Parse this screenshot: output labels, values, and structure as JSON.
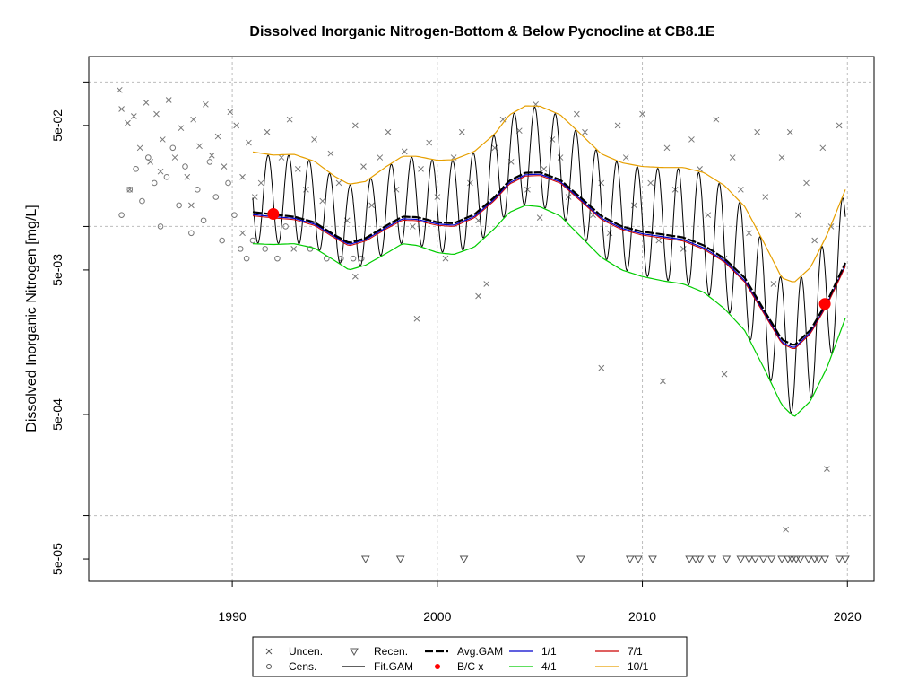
{
  "chart_data": {
    "type": "line",
    "title": "Dissolved Inorganic Nitrogen-Bottom & Below Pycnocline at CB8.1E",
    "xlabel": "",
    "ylabel": "Dissolved Inorganic Nitrogen [mg/L]",
    "xlim": [
      1983,
      2021.3
    ],
    "ylim": [
      3.5e-05,
      0.15
    ],
    "y_scale": "log",
    "grid": true,
    "x_ticks": [
      1990,
      2000,
      2010,
      2020
    ],
    "x_tick_labels": [
      "1990",
      "2000",
      "2010",
      "2020"
    ],
    "y_ticks": [
      5e-05,
      0.0005,
      0.005,
      0.05
    ],
    "y_tick_labels": [
      "5e-05",
      "5e-04",
      "5e-03",
      "5e-02"
    ],
    "y_grid_minor": [
      0.0001,
      0.001,
      0.01,
      0.1
    ],
    "bc_points": [
      {
        "x": 1992.0,
        "y": 0.0122
      },
      {
        "x": 2018.9,
        "y": 0.00291
      }
    ],
    "smooth_series": {
      "x": [
        1991.0,
        1992.0,
        1993.0,
        1994.0,
        1995.0,
        1995.7,
        1996.5,
        1997.5,
        1998.3,
        1999.0,
        2000.0,
        2000.8,
        2001.8,
        2002.8,
        2003.5,
        2004.3,
        2005.0,
        2006.0,
        2007.0,
        2008.0,
        2009.0,
        2010.0,
        2011.0,
        2012.0,
        2013.0,
        2014.0,
        2015.0,
        2016.0,
        2016.8,
        2017.4,
        2018.2,
        2019.0,
        2019.9
      ],
      "avg_gam": [
        0.0126,
        0.0121,
        0.0117,
        0.0107,
        0.0087,
        0.0077,
        0.0083,
        0.0101,
        0.0117,
        0.0116,
        0.0107,
        0.0105,
        0.0121,
        0.016,
        0.0207,
        0.0235,
        0.0237,
        0.021,
        0.0158,
        0.0118,
        0.01,
        0.0092,
        0.0088,
        0.0084,
        0.0074,
        0.006,
        0.0044,
        0.00255,
        0.00165,
        0.0015,
        0.00192,
        0.003,
        0.0056
      ],
      "jul": [
        0.0121,
        0.0117,
        0.0114,
        0.0104,
        0.0085,
        0.0075,
        0.0081,
        0.0098,
        0.0113,
        0.0112,
        0.0104,
        0.0102,
        0.0117,
        0.0155,
        0.02,
        0.0228,
        0.023,
        0.0204,
        0.0153,
        0.0114,
        0.0097,
        0.0089,
        0.0085,
        0.0081,
        0.0071,
        0.0058,
        0.0042,
        0.00245,
        0.00158,
        0.00144,
        0.00185,
        0.0029,
        0.0054
      ],
      "apr": [
        0.0076,
        0.0075,
        0.0076,
        0.0071,
        0.0058,
        0.005,
        0.0054,
        0.0065,
        0.0076,
        0.0074,
        0.0066,
        0.0064,
        0.0072,
        0.0097,
        0.0125,
        0.014,
        0.0137,
        0.0118,
        0.0085,
        0.0061,
        0.005,
        0.0045,
        0.0042,
        0.004,
        0.0035,
        0.0027,
        0.0019,
        0.001,
        0.00058,
        0.00048,
        0.00062,
        0.00105,
        0.00232
      ],
      "oct": [
        0.0328,
        0.0312,
        0.0316,
        0.0283,
        0.0222,
        0.0196,
        0.0205,
        0.0259,
        0.0306,
        0.0306,
        0.0287,
        0.029,
        0.033,
        0.0437,
        0.059,
        0.0683,
        0.068,
        0.0592,
        0.0435,
        0.0318,
        0.0276,
        0.026,
        0.0256,
        0.0256,
        0.0236,
        0.0192,
        0.0137,
        0.0074,
        0.0044,
        0.0041,
        0.0052,
        0.0087,
        0.018
      ]
    },
    "uncen_points": {
      "x": [
        1984.5,
        1984.6,
        1984.9,
        1985.2,
        1985.5,
        1985.8,
        1986.0,
        1986.3,
        1986.6,
        1986.9,
        1987.2,
        1987.5,
        1987.8,
        1988.1,
        1988.4,
        1988.7,
        1989.0,
        1989.3,
        1989.6,
        1989.9,
        1990.2,
        1990.5,
        1990.8,
        1991.1,
        1991.4,
        1991.7,
        1992.0,
        1992.4,
        1992.8,
        1993.2,
        1993.6,
        1994.0,
        1994.4,
        1994.8,
        1995.2,
        1995.6,
        1996.0,
        1996.4,
        1996.8,
        1997.2,
        1997.6,
        1998.0,
        1998.4,
        1998.8,
        1999.2,
        1999.6,
        2000.0,
        2000.4,
        2000.8,
        2001.2,
        2001.6,
        2002.0,
        2002.4,
        2002.8,
        2003.2,
        2003.6,
        2004.0,
        2004.4,
        2004.8,
        2005.2,
        2005.6,
        2006.0,
        2006.4,
        2006.8,
        2007.2,
        2007.6,
        2008.0,
        2008.4,
        2008.8,
        2009.2,
        2009.6,
        2010.0,
        2010.4,
        2010.8,
        2011.2,
        2011.6,
        2012.0,
        2012.4,
        2012.8,
        2013.2,
        2013.6,
        2014.0,
        2014.4,
        2014.8,
        2015.2,
        2015.6,
        2016.0,
        2016.4,
        2016.8,
        2017.2,
        2017.6,
        2018.0,
        2018.4,
        2018.8,
        2019.2,
        2019.6,
        1985.0,
        1986.5,
        1988.0,
        1990.5,
        1993.0,
        1996.0,
        1999.0,
        2002.0,
        2005.0,
        2008.0,
        2011.0,
        2014.0,
        2017.0,
        2019.0
      ],
      "y": [
        0.088,
        0.065,
        0.052,
        0.058,
        0.035,
        0.072,
        0.028,
        0.06,
        0.04,
        0.075,
        0.03,
        0.048,
        0.022,
        0.055,
        0.036,
        0.07,
        0.031,
        0.042,
        0.026,
        0.062,
        0.05,
        0.022,
        0.038,
        0.016,
        0.02,
        0.045,
        0.012,
        0.03,
        0.055,
        0.025,
        0.018,
        0.04,
        0.015,
        0.032,
        0.02,
        0.011,
        0.05,
        0.026,
        0.014,
        0.03,
        0.045,
        0.018,
        0.033,
        0.01,
        0.025,
        0.038,
        0.016,
        0.006,
        0.03,
        0.045,
        0.02,
        0.011,
        0.004,
        0.035,
        0.055,
        0.028,
        0.046,
        0.018,
        0.07,
        0.025,
        0.04,
        0.03,
        0.016,
        0.06,
        0.045,
        0.012,
        0.02,
        0.009,
        0.05,
        0.03,
        0.014,
        0.06,
        0.02,
        0.008,
        0.035,
        0.018,
        0.007,
        0.04,
        0.025,
        0.012,
        0.055,
        0.006,
        0.03,
        0.018,
        0.009,
        0.045,
        0.016,
        0.004,
        0.03,
        0.045,
        0.012,
        0.02,
        0.008,
        0.035,
        0.01,
        0.05,
        0.018,
        0.024,
        0.014,
        0.009,
        0.007,
        0.0045,
        0.0023,
        0.0033,
        0.0115,
        0.00105,
        0.00085,
        0.00095,
        8e-05,
        0.00021
      ]
    },
    "cens_points": {
      "x": [
        1984.6,
        1985.0,
        1985.3,
        1985.6,
        1985.9,
        1986.2,
        1986.5,
        1986.8,
        1987.1,
        1987.4,
        1987.7,
        1988.0,
        1988.3,
        1988.6,
        1988.9,
        1989.2,
        1989.5,
        1989.8,
        1990.1,
        1990.4,
        1990.7,
        1991.0,
        1991.6,
        1992.2,
        1992.6,
        1993.8,
        1994.6,
        1995.3,
        1995.9,
        1996.3
      ],
      "y": [
        0.012,
        0.018,
        0.025,
        0.015,
        0.03,
        0.02,
        0.01,
        0.022,
        0.035,
        0.014,
        0.026,
        0.009,
        0.018,
        0.011,
        0.028,
        0.016,
        0.008,
        0.02,
        0.012,
        0.007,
        0.006,
        0.008,
        0.007,
        0.006,
        0.01,
        0.007,
        0.006,
        0.006,
        0.006,
        0.006
      ]
    },
    "recen_points": {
      "x": [
        1996.5,
        1998.2,
        2001.3,
        2007.0,
        2009.4,
        2009.8,
        2010.5,
        2012.3,
        2012.6,
        2012.8,
        2013.4,
        2014.1,
        2014.8,
        2015.2,
        2015.5,
        2015.9,
        2016.3,
        2016.8,
        2017.1,
        2017.3,
        2017.5,
        2017.7,
        2018.1,
        2018.4,
        2018.6,
        2018.9,
        2019.6,
        2019.9
      ],
      "y": [
        5e-05,
        5e-05,
        5e-05,
        5e-05,
        5e-05,
        5e-05,
        5e-05,
        5e-05,
        5e-05,
        5e-05,
        5e-05,
        5e-05,
        5e-05,
        5e-05,
        5e-05,
        5e-05,
        5e-05,
        5e-05,
        5e-05,
        5e-05,
        5e-05,
        5e-05,
        5e-05,
        5e-05,
        5e-05,
        5e-05,
        5e-05,
        5e-05
      ]
    },
    "legend": {
      "items": [
        {
          "label": "Uncen.",
          "symbol": "x"
        },
        {
          "label": "Cens.",
          "symbol": "o"
        },
        {
          "label": "Recen.",
          "symbol": "v"
        },
        {
          "label": "Fit.GAM",
          "symbol": "line",
          "color": "#000000"
        },
        {
          "label": "Avg.GAM",
          "symbol": "dash",
          "color": "#000000"
        },
        {
          "label": "B/C x",
          "symbol": "dot",
          "color": "#ff0000"
        },
        {
          "label": "1/1",
          "symbol": "line",
          "color": "#0000cc"
        },
        {
          "label": "4/1",
          "symbol": "line",
          "color": "#00cc00"
        },
        {
          "label": "7/1",
          "symbol": "line",
          "color": "#cc0000"
        },
        {
          "label": "10/1",
          "symbol": "line",
          "color": "#e69f00"
        }
      ],
      "placement": "bottom"
    },
    "colors": {
      "jan": "#0000cc",
      "apr": "#00cc00",
      "jul": "#cc0000",
      "oct": "#e69f00",
      "fit": "#000000",
      "avg": "#000000",
      "bc": "#ff0000",
      "points": "#777777"
    }
  }
}
